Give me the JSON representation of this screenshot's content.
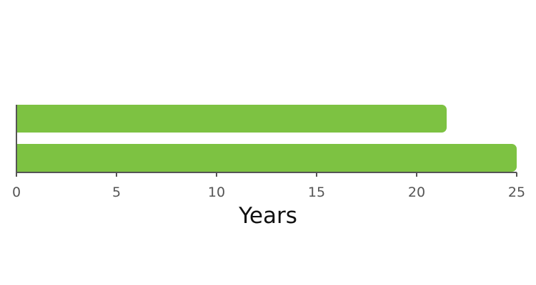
{
  "chart_data": {
    "type": "bar",
    "orientation": "horizontal",
    "categories": [
      "",
      ""
    ],
    "values": [
      21.5,
      25
    ],
    "xlabel": "Years",
    "ylabel": "",
    "xlim": [
      0,
      25
    ],
    "xticks": [
      0,
      5,
      10,
      15,
      20,
      25
    ],
    "xtick_labels": [
      "0",
      "5",
      "10",
      "15",
      "20",
      "25"
    ],
    "grid": false,
    "legend": "none",
    "colors": {
      "bar": "#7dc242",
      "axis": "#555555",
      "tick_text": "#555555",
      "title_text": "#111111"
    }
  }
}
